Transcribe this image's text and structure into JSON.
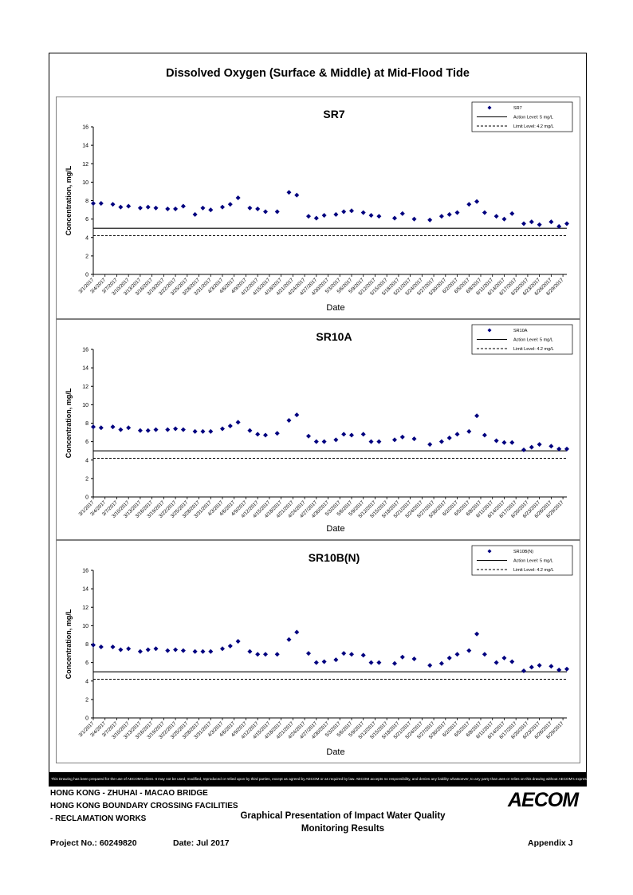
{
  "main_title": "Dissolved Oxygen (Surface & Middle) at Mid-Flood Tide",
  "date_labels": [
    "3/1/2017",
    "3/4/2017",
    "3/7/2017",
    "3/10/2017",
    "3/13/2017",
    "3/16/2017",
    "3/19/2017",
    "3/22/2017",
    "3/25/2017",
    "3/28/2017",
    "3/31/2017",
    "4/3/2017",
    "4/6/2017",
    "4/9/2017",
    "4/12/2017",
    "4/15/2017",
    "4/18/2017",
    "4/21/2017",
    "4/24/2017",
    "4/27/2017",
    "4/30/2017",
    "5/3/2017",
    "5/6/2017",
    "5/9/2017",
    "5/12/2017",
    "5/15/2017",
    "5/18/2017",
    "5/21/2017",
    "5/24/2017",
    "5/27/2017",
    "5/30/2017",
    "6/2/2017",
    "6/5/2017",
    "6/8/2017",
    "6/11/2017",
    "6/14/2017",
    "6/17/2017",
    "6/20/2017",
    "6/23/2017",
    "6/26/2017",
    "6/29/2017"
  ],
  "chart_data": [
    {
      "type": "scatter",
      "title": "SR7",
      "xlabel": "Date",
      "ylabel": "Concentration, mg/L",
      "ylim": [
        0,
        16
      ],
      "yticks": [
        0,
        2,
        4,
        6,
        8,
        10,
        12,
        14,
        16
      ],
      "legend_position": "top-right",
      "series": [
        {
          "name": "SR7",
          "color": "#00007f",
          "x": [
            "3/1/2017",
            "3/3/2017",
            "3/6/2017",
            "3/8/2017",
            "3/10/2017",
            "3/13/2017",
            "3/15/2017",
            "3/17/2017",
            "3/20/2017",
            "3/22/2017",
            "3/24/2017",
            "3/27/2017",
            "3/29/2017",
            "3/31/2017",
            "4/3/2017",
            "4/5/2017",
            "4/7/2017",
            "4/10/2017",
            "4/12/2017",
            "4/14/2017",
            "4/17/2017",
            "4/20/2017",
            "4/22/2017",
            "4/25/2017",
            "4/27/2017",
            "4/29/2017",
            "5/2/2017",
            "5/4/2017",
            "5/6/2017",
            "5/9/2017",
            "5/11/2017",
            "5/13/2017",
            "5/17/2017",
            "5/19/2017",
            "5/22/2017",
            "5/26/2017",
            "5/29/2017",
            "5/31/2017",
            "6/2/2017",
            "6/5/2017",
            "6/7/2017",
            "6/9/2017",
            "6/12/2017",
            "6/14/2017",
            "6/16/2017",
            "6/19/2017",
            "6/21/2017",
            "6/23/2017",
            "6/26/2017",
            "6/28/2017",
            "6/30/2017"
          ],
          "y": [
            7.7,
            7.7,
            7.6,
            7.3,
            7.4,
            7.2,
            7.3,
            7.2,
            7.1,
            7.1,
            7.4,
            6.5,
            7.2,
            7.0,
            7.3,
            7.6,
            8.3,
            7.2,
            7.1,
            6.8,
            6.8,
            8.9,
            8.6,
            6.3,
            6.1,
            6.4,
            6.5,
            6.8,
            6.9,
            6.7,
            6.4,
            6.3,
            6.1,
            6.6,
            6.0,
            5.9,
            6.3,
            6.5,
            6.7,
            7.6,
            7.9,
            6.7,
            6.3,
            6.0,
            6.6,
            5.5,
            5.7,
            5.4,
            5.7,
            5.2,
            5.5
          ]
        },
        {
          "name": "Action Level: 5 mg/L",
          "value": 5,
          "style": "solid"
        },
        {
          "name": "Limit Level: 4.2 mg/L",
          "value": 4.2,
          "style": "dashed"
        }
      ]
    },
    {
      "type": "scatter",
      "title": "SR10A",
      "xlabel": "Date",
      "ylabel": "Concentration, mg/L",
      "ylim": [
        0,
        16
      ],
      "yticks": [
        0,
        2,
        4,
        6,
        8,
        10,
        12,
        14,
        16
      ],
      "legend_position": "top-right",
      "series": [
        {
          "name": "SR10A",
          "color": "#00007f",
          "x": [
            "3/1/2017",
            "3/3/2017",
            "3/6/2017",
            "3/8/2017",
            "3/10/2017",
            "3/13/2017",
            "3/15/2017",
            "3/17/2017",
            "3/20/2017",
            "3/22/2017",
            "3/24/2017",
            "3/27/2017",
            "3/29/2017",
            "3/31/2017",
            "4/3/2017",
            "4/5/2017",
            "4/7/2017",
            "4/10/2017",
            "4/12/2017",
            "4/14/2017",
            "4/17/2017",
            "4/20/2017",
            "4/22/2017",
            "4/25/2017",
            "4/27/2017",
            "4/29/2017",
            "5/2/2017",
            "5/4/2017",
            "5/6/2017",
            "5/9/2017",
            "5/11/2017",
            "5/13/2017",
            "5/17/2017",
            "5/19/2017",
            "5/22/2017",
            "5/26/2017",
            "5/29/2017",
            "5/31/2017",
            "6/2/2017",
            "6/5/2017",
            "6/7/2017",
            "6/9/2017",
            "6/12/2017",
            "6/14/2017",
            "6/16/2017",
            "6/19/2017",
            "6/21/2017",
            "6/23/2017",
            "6/26/2017",
            "6/28/2017",
            "6/30/2017"
          ],
          "y": [
            7.6,
            7.5,
            7.6,
            7.3,
            7.5,
            7.2,
            7.2,
            7.3,
            7.3,
            7.4,
            7.3,
            7.1,
            7.1,
            7.1,
            7.4,
            7.7,
            8.1,
            7.2,
            6.8,
            6.7,
            6.9,
            8.3,
            8.9,
            6.6,
            6.0,
            6.0,
            6.2,
            6.8,
            6.7,
            6.8,
            6.0,
            6.0,
            6.2,
            6.5,
            6.3,
            5.7,
            6.0,
            6.4,
            6.8,
            7.1,
            8.8,
            6.7,
            6.1,
            5.9,
            5.9,
            5.1,
            5.4,
            5.7,
            5.5,
            5.2,
            5.2
          ]
        },
        {
          "name": "Action Level: 5 mg/L",
          "value": 5,
          "style": "solid"
        },
        {
          "name": "Limit Level: 4.2 mg/L",
          "value": 4.2,
          "style": "dashed"
        }
      ]
    },
    {
      "type": "scatter",
      "title": "SR10B(N)",
      "xlabel": "Date",
      "ylabel": "Concentration, mg/L",
      "ylim": [
        0,
        16
      ],
      "yticks": [
        0,
        2,
        4,
        6,
        8,
        10,
        12,
        14,
        16
      ],
      "legend_position": "top-right",
      "series": [
        {
          "name": "SR10B(N)",
          "color": "#00007f",
          "x": [
            "3/1/2017",
            "3/3/2017",
            "3/6/2017",
            "3/8/2017",
            "3/10/2017",
            "3/13/2017",
            "3/15/2017",
            "3/17/2017",
            "3/20/2017",
            "3/22/2017",
            "3/24/2017",
            "3/27/2017",
            "3/29/2017",
            "3/31/2017",
            "4/3/2017",
            "4/5/2017",
            "4/7/2017",
            "4/10/2017",
            "4/12/2017",
            "4/14/2017",
            "4/17/2017",
            "4/20/2017",
            "4/22/2017",
            "4/25/2017",
            "4/27/2017",
            "4/29/2017",
            "5/2/2017",
            "5/4/2017",
            "5/6/2017",
            "5/9/2017",
            "5/11/2017",
            "5/13/2017",
            "5/17/2017",
            "5/19/2017",
            "5/22/2017",
            "5/26/2017",
            "5/29/2017",
            "5/31/2017",
            "6/2/2017",
            "6/5/2017",
            "6/7/2017",
            "6/9/2017",
            "6/12/2017",
            "6/14/2017",
            "6/16/2017",
            "6/19/2017",
            "6/21/2017",
            "6/23/2017",
            "6/26/2017",
            "6/28/2017",
            "6/30/2017"
          ],
          "y": [
            7.9,
            7.7,
            7.7,
            7.4,
            7.5,
            7.2,
            7.4,
            7.5,
            7.3,
            7.4,
            7.3,
            7.2,
            7.2,
            7.2,
            7.5,
            7.8,
            8.3,
            7.2,
            6.9,
            6.9,
            6.9,
            8.5,
            9.3,
            7.0,
            6.0,
            6.1,
            6.3,
            7.0,
            6.9,
            6.8,
            6.0,
            6.0,
            5.9,
            6.6,
            6.4,
            5.7,
            5.9,
            6.5,
            6.9,
            7.3,
            9.1,
            6.9,
            6.0,
            6.5,
            6.1,
            5.1,
            5.5,
            5.7,
            5.6,
            5.2,
            5.3
          ]
        },
        {
          "name": "Action Level: 5 mg/L",
          "value": 5,
          "style": "solid"
        },
        {
          "name": "Limit Level: 4.2 mg/L",
          "value": 4.2,
          "style": "dashed"
        }
      ]
    }
  ],
  "disclaimer": "This Drawing has been prepared for the use of AECOM's client. It may not be used, modified, reproduced or relied upon by third parties, except as agreed by AECOM or as required by law. AECOM accepts no responsibility, and denies any liability whatsoever, to any party that uses or relies on this drawing without AECOM's express written consent.",
  "footer": {
    "line1": "HONG KONG - ZHUHAI - MACAO BRIDGE",
    "line2": "HONG KONG BOUNDARY CROSSING FACILITIES",
    "line3": "- RECLAMATION WORKS",
    "center_title_1": "Graphical Presentation of Impact Water Quality",
    "center_title_2": "Monitoring Results",
    "project": "Project No.: 60249820",
    "date": "Date: Jul 2017",
    "appendix": "Appendix J",
    "logo": "AECOM"
  }
}
